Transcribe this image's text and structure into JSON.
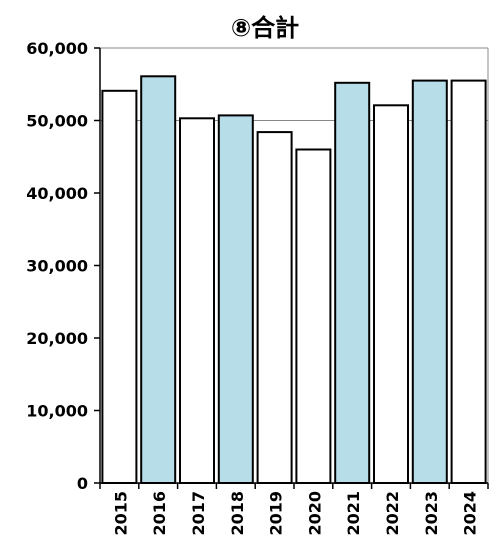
{
  "chart_data": {
    "type": "bar",
    "title": "⑧合計",
    "xlabel": "",
    "ylabel": "",
    "categories": [
      "2015",
      "2016",
      "2017",
      "2018",
      "2019",
      "2020",
      "2021",
      "2022",
      "2023",
      "2024"
    ],
    "values": [
      54100,
      56100,
      50300,
      50700,
      48400,
      46000,
      55200,
      52100,
      55500,
      55500
    ],
    "bar_fill": [
      "#ffffff",
      "#b7dde8",
      "#ffffff",
      "#b7dde8",
      "#ffffff",
      "#ffffff",
      "#b7dde8",
      "#ffffff",
      "#b7dde8",
      "#ffffff"
    ],
    "y_ticks": [
      "0",
      "10,000",
      "20,000",
      "30,000",
      "40,000",
      "50,000",
      "60,000"
    ],
    "ylim": [
      0,
      60000
    ],
    "grid": "horizontal lines at 50,000 and 60,000 only",
    "legend": "none"
  }
}
